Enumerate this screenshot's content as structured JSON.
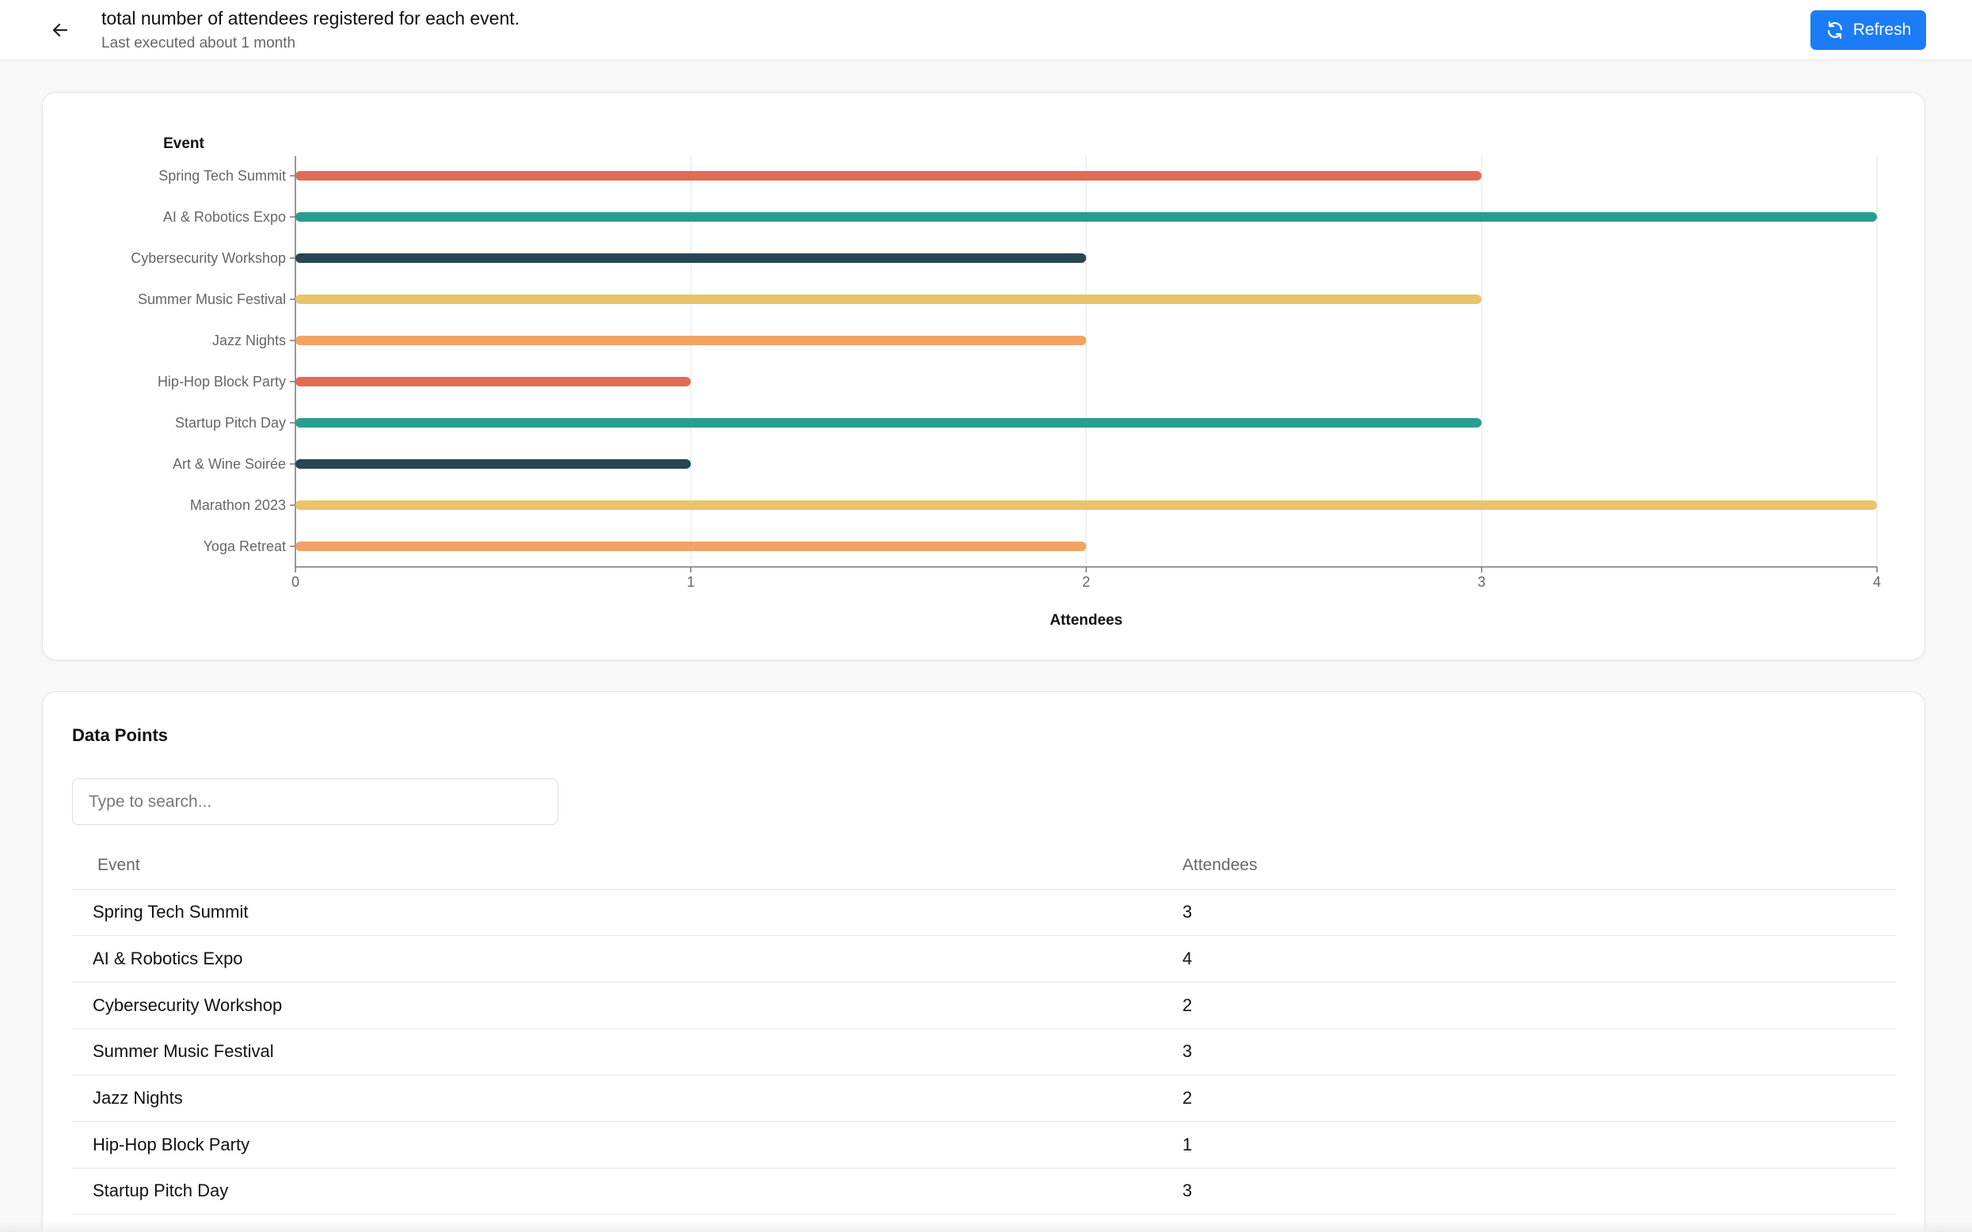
{
  "header": {
    "title": "total number of attendees registered for each event.",
    "subtitle": "Last executed about 1 month",
    "refresh_label": "Refresh",
    "back_icon": "arrow-left-icon",
    "refresh_icon": "refresh-icon"
  },
  "colors": {
    "accent": "#1b7cf5",
    "bar_palette": [
      "#e06c55",
      "#2a9d8f",
      "#264653",
      "#e9c46a",
      "#f4a261"
    ]
  },
  "chart_data": {
    "type": "bar",
    "orientation": "horizontal",
    "categories": [
      "Spring Tech Summit",
      "AI & Robotics Expo",
      "Cybersecurity Workshop",
      "Summer Music Festival",
      "Jazz Nights",
      "Hip-Hop Block Party",
      "Startup Pitch Day",
      "Art & Wine Soirée",
      "Marathon 2023",
      "Yoga Retreat"
    ],
    "values": [
      3,
      4,
      2,
      3,
      2,
      1,
      3,
      1,
      4,
      2
    ],
    "ylabel": "Event",
    "xlabel": "Attendees",
    "xlim": [
      0,
      4
    ],
    "xticks": [
      "0",
      "1",
      "2",
      "3",
      "4"
    ],
    "grid": true,
    "legend": "none"
  },
  "table": {
    "section_title": "Data Points",
    "search_placeholder": "Type to search...",
    "columns": [
      "Event",
      "Attendees"
    ],
    "rows": [
      [
        "Spring Tech Summit",
        "3"
      ],
      [
        "AI & Robotics Expo",
        "4"
      ],
      [
        "Cybersecurity Workshop",
        "2"
      ],
      [
        "Summer Music Festival",
        "3"
      ],
      [
        "Jazz Nights",
        "2"
      ],
      [
        "Hip-Hop Block Party",
        "1"
      ],
      [
        "Startup Pitch Day",
        "3"
      ]
    ]
  }
}
